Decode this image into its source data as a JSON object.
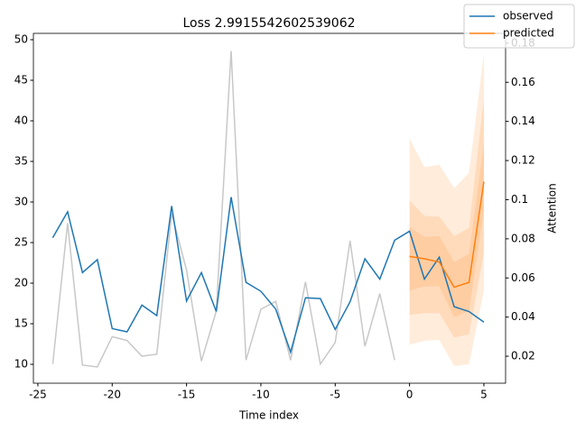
{
  "chart_data": {
    "type": "line",
    "title": "Loss 2.9915542602539062",
    "xlabel": "Time index",
    "y2label": "Attention",
    "xlim": [
      -25.3,
      6.46
    ],
    "xticks": [
      -25,
      -20,
      -15,
      -10,
      -5,
      0,
      5
    ],
    "ylim": [
      7.67,
      50.78
    ],
    "yticks": [
      10,
      15,
      20,
      25,
      30,
      35,
      40,
      45,
      50
    ],
    "y2lim": [
      0.0062,
      0.185
    ],
    "y2ticks": [
      0.02,
      0.04,
      0.06,
      0.08,
      0.1,
      0.12,
      0.14,
      0.16,
      0.18
    ],
    "grid": false,
    "legend": "upper right",
    "bands": [
      {
        "color": "#ff7f0e",
        "alpha": 0.15,
        "x": [
          0,
          1,
          2,
          3,
          4,
          5
        ],
        "lower": [
          12.4,
          12.9,
          13.0,
          9.8,
          10.0,
          19.1
        ],
        "upper": [
          37.8,
          34.3,
          34.6,
          31.7,
          33.6,
          48.2
        ]
      },
      {
        "color": "#ff7f0e",
        "alpha": 0.15,
        "x": [
          0,
          1,
          2,
          3,
          4,
          5
        ],
        "lower": [
          16.1,
          16.3,
          16.3,
          13.3,
          13.7,
          23.8
        ],
        "upper": [
          30.2,
          28.3,
          28.2,
          25.8,
          26.8,
          42.7
        ]
      },
      {
        "color": "#ff7f0e",
        "alpha": 0.15,
        "x": [
          0,
          1,
          2,
          3,
          4,
          5
        ],
        "lower": [
          19.1,
          19.6,
          19.6,
          15.8,
          16.6,
          29.0
        ],
        "upper": [
          26.9,
          25.7,
          25.8,
          22.6,
          23.6,
          37.1
        ]
      }
    ],
    "series": [
      {
        "color": "#c8c8c8",
        "axis": "y2",
        "x": [
          -24,
          -23,
          -22,
          -21,
          -20,
          -19,
          -18,
          -17,
          -16,
          -15,
          -14,
          -13,
          -12,
          -11,
          -10,
          -9,
          -8,
          -7,
          -6,
          -5,
          -4,
          -3,
          -2,
          -1
        ],
        "values": [
          0.016,
          0.088,
          0.0155,
          0.0145,
          0.03,
          0.028,
          0.02,
          0.021,
          0.093,
          0.064,
          0.0175,
          0.043,
          0.176,
          0.018,
          0.044,
          0.048,
          0.018,
          0.058,
          0.016,
          0.027,
          0.079,
          0.025,
          0.052,
          0.018
        ]
      },
      {
        "name": "observed",
        "color": "#1f77b4",
        "x": [
          -24,
          -23,
          -22,
          -21,
          -20,
          -19,
          -18,
          -17,
          -16,
          -15,
          -14,
          -13,
          -12,
          -11,
          -10,
          -9,
          -8,
          -7,
          -6,
          -5,
          -4,
          -3,
          -2,
          -1,
          0,
          1,
          2,
          3,
          4,
          5
        ],
        "values": [
          25.6,
          28.8,
          21.3,
          22.9,
          14.4,
          14.0,
          17.3,
          16.0,
          29.5,
          17.8,
          21.3,
          16.5,
          30.6,
          20.1,
          19.0,
          16.8,
          11.5,
          18.2,
          18.1,
          14.3,
          17.7,
          23.0,
          20.5,
          25.3,
          26.4,
          20.5,
          23.2,
          17.1,
          16.5,
          15.2
        ]
      },
      {
        "name": "predicted",
        "color": "#ff7f0e",
        "x": [
          0,
          1,
          2,
          3,
          4,
          5
        ],
        "values": [
          23.3,
          23.0,
          22.6,
          19.5,
          20.1,
          32.5
        ]
      }
    ]
  }
}
